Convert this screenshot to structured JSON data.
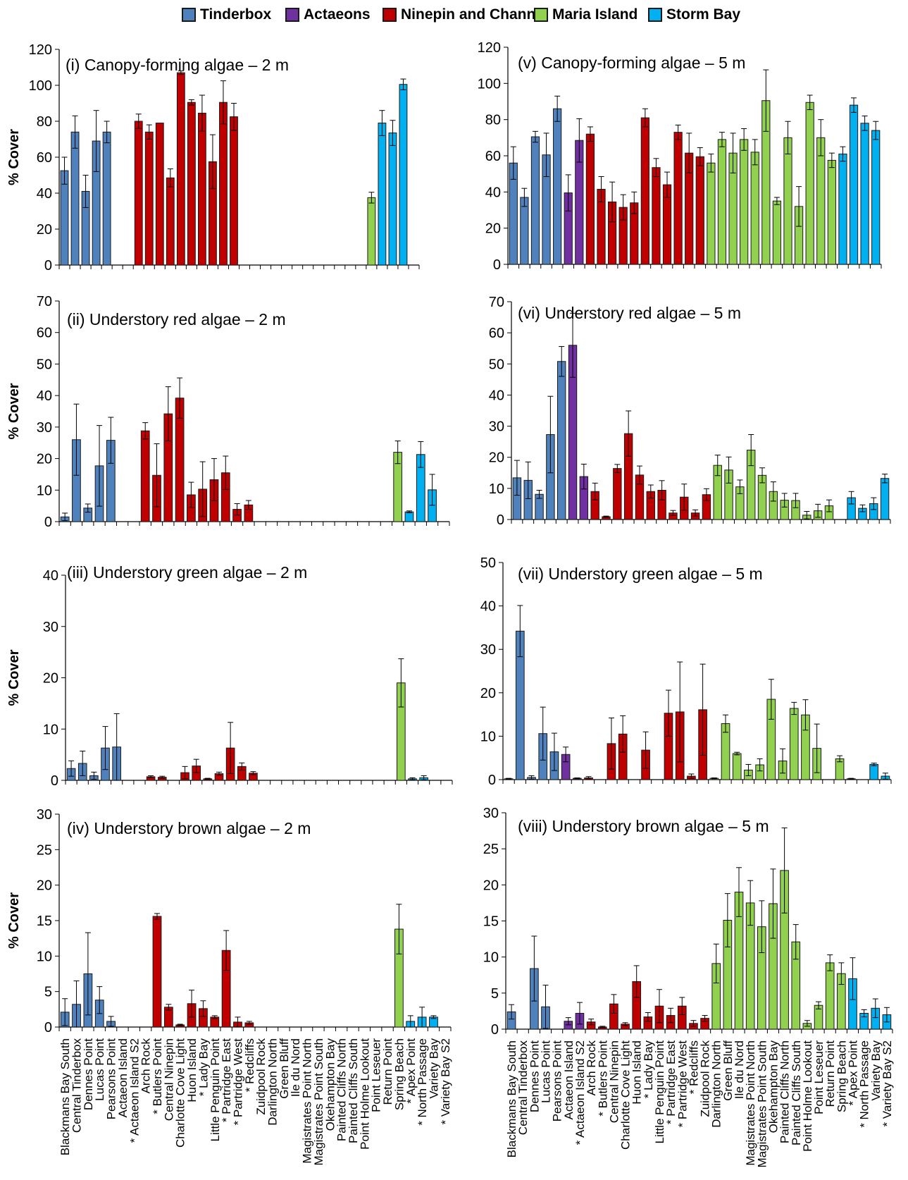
{
  "sites": [
    "Blackmans Bay South",
    "Central Tinderbox",
    "Dennes Point",
    "Lucas Point",
    "Pearsons Point",
    "Actaeon Island",
    "* Actaeon Island S2",
    "Arch Rock",
    "* Butlers Point",
    "Central Ninepin",
    "Charlotte Cove Light",
    "Huon Island",
    "* Lady Bay",
    "Little Penguin Point",
    "* Partridge East",
    "* Partridge West",
    "* Redcliffs",
    "Zuidpool Rock",
    "Darlington North",
    "Green Bluff",
    "Ile du Nord",
    "Magistrates Point North",
    "Magistrates Point South",
    "Okehampton Bay",
    "Painted Cliffs North",
    "Painted Cliffs South",
    "Point Holme Lookout",
    "Point Leseuer",
    "Return Point",
    "Spring Beach",
    "* Apex Point",
    "* North Passage",
    "Variety Bay",
    "* Variety Bay S2"
  ],
  "regions": [
    "Tinderbox",
    "Tinderbox",
    "Tinderbox",
    "Tinderbox",
    "Tinderbox",
    "Actaeons",
    "Actaeons",
    "Ninepin and Channel",
    "Ninepin and Channel",
    "Ninepin and Channel",
    "Ninepin and Channel",
    "Ninepin and Channel",
    "Ninepin and Channel",
    "Ninepin and Channel",
    "Ninepin and Channel",
    "Ninepin and Channel",
    "Ninepin and Channel",
    "Ninepin and Channel",
    "Maria Island",
    "Maria Island",
    "Maria Island",
    "Maria Island",
    "Maria Island",
    "Maria Island",
    "Maria Island",
    "Maria Island",
    "Maria Island",
    "Maria Island",
    "Maria Island",
    "Maria Island",
    "Storm Bay",
    "Storm Bay",
    "Storm Bay",
    "Storm Bay"
  ],
  "legend": [
    {
      "name": "Tinderbox",
      "color": "#4f81bd"
    },
    {
      "name": "Actaeons",
      "color": "#7030a0"
    },
    {
      "name": "Ninepin and Channel",
      "color": "#c00000"
    },
    {
      "name": "Maria Island",
      "color": "#92d050"
    },
    {
      "name": "Storm Bay",
      "color": "#00b0f0"
    }
  ],
  "chart_data": [
    {
      "type": "bar",
      "title": "(i) Canopy-forming  algae – 2 m",
      "ylabel": "% Cover",
      "ylim": [
        0,
        120
      ],
      "yticks": [
        0,
        20,
        40,
        60,
        80,
        100,
        120
      ],
      "values": [
        52.5,
        74,
        41,
        69,
        74,
        null,
        null,
        80,
        74,
        79,
        48.5,
        107,
        90.5,
        84.5,
        57.5,
        90.5,
        82.5,
        null,
        null,
        null,
        null,
        null,
        null,
        null,
        null,
        null,
        null,
        null,
        null,
        37.5,
        79,
        73.5,
        100.5,
        null
      ],
      "errors": [
        7.5,
        9,
        9,
        17,
        6,
        null,
        null,
        4,
        4,
        0,
        5,
        1,
        1.5,
        10,
        15,
        12,
        7.5,
        null,
        null,
        null,
        null,
        null,
        null,
        null,
        null,
        null,
        null,
        null,
        null,
        3,
        7,
        7,
        3,
        null
      ]
    },
    {
      "type": "bar",
      "title": "(ii) Understory red algae – 2 m",
      "ylabel": "% Cover",
      "ylim": [
        0,
        70
      ],
      "yticks": [
        0,
        10,
        20,
        30,
        40,
        50,
        60,
        70
      ],
      "values": [
        1.5,
        26,
        4.3,
        17.7,
        25.8,
        null,
        null,
        28.8,
        14.7,
        34.2,
        39.2,
        8.5,
        10.3,
        13.3,
        15.5,
        3.9,
        5.3,
        null,
        null,
        null,
        null,
        null,
        null,
        null,
        null,
        null,
        null,
        null,
        null,
        22,
        3.1,
        21.3,
        10.1,
        null
      ],
      "errors": [
        1.2,
        11.3,
        1.3,
        12.8,
        7.3,
        null,
        null,
        2.6,
        10,
        8.6,
        6.4,
        4,
        8.7,
        6.7,
        5.3,
        1.8,
        1.4,
        null,
        null,
        null,
        null,
        null,
        null,
        null,
        null,
        null,
        null,
        null,
        null,
        3.6,
        0.3,
        4.1,
        4.9,
        null
      ]
    },
    {
      "type": "bar",
      "title": "(iii) Understory green algae – 2 m",
      "ylabel": "% Cover",
      "ylim": [
        0,
        40
      ],
      "yticks": [
        0,
        10,
        20,
        30,
        40
      ],
      "values": [
        2.3,
        3.3,
        0.9,
        6.3,
        6.5,
        null,
        null,
        0.7,
        0.6,
        null,
        1.5,
        2.8,
        0.3,
        1.3,
        6.3,
        2.7,
        1.4,
        null,
        null,
        null,
        null,
        null,
        null,
        null,
        null,
        null,
        null,
        null,
        null,
        19,
        0.3,
        0.5,
        null,
        null
      ],
      "errors": [
        1.5,
        2.4,
        0.7,
        4.2,
        6.5,
        null,
        null,
        0.2,
        0.2,
        null,
        1.2,
        1.3,
        0.1,
        0.3,
        5,
        0.7,
        0.3,
        null,
        null,
        null,
        null,
        null,
        null,
        null,
        null,
        null,
        null,
        null,
        null,
        4.7,
        0.2,
        0.4,
        null,
        null
      ]
    },
    {
      "type": "bar",
      "title": "(iv) Understory brown algae – 2 m",
      "ylabel": "% Cover",
      "ylim": [
        0,
        30
      ],
      "yticks": [
        0,
        5,
        10,
        15,
        20,
        25,
        30
      ],
      "values": [
        2.1,
        3.2,
        7.5,
        3.8,
        0.8,
        null,
        null,
        null,
        15.6,
        2.8,
        0.3,
        3.3,
        2.6,
        1.4,
        10.8,
        0.7,
        0.6,
        null,
        null,
        null,
        null,
        null,
        null,
        null,
        null,
        null,
        null,
        null,
        null,
        13.8,
        0.8,
        1.4,
        1.4,
        null
      ],
      "errors": [
        1.9,
        3.3,
        5.8,
        1.9,
        0.7,
        null,
        null,
        null,
        0.4,
        0.4,
        0.1,
        1.9,
        1.1,
        0.2,
        2.8,
        0.7,
        0.2,
        null,
        null,
        null,
        null,
        null,
        null,
        null,
        null,
        null,
        null,
        null,
        null,
        3.5,
        0.8,
        1.4,
        0.2,
        null
      ]
    },
    {
      "type": "bar",
      "title": "(v) Canopy-forming  algae – 5 m",
      "ylabel": "",
      "ylim": [
        0,
        120
      ],
      "yticks": [
        0,
        20,
        40,
        60,
        80,
        100,
        120
      ],
      "values": [
        56,
        37,
        70.5,
        60.5,
        86,
        39.5,
        68.5,
        72,
        41.5,
        34.5,
        31.5,
        34,
        81,
        53.5,
        44,
        73,
        61.5,
        59.5,
        56,
        69,
        61.5,
        69,
        62,
        90.5,
        35,
        70,
        32,
        89.5,
        70,
        57.5,
        61,
        88,
        78,
        74
      ],
      "errors": [
        9,
        5,
        3,
        12,
        7,
        10,
        12,
        4,
        7,
        11,
        7,
        6,
        5,
        5,
        7,
        4,
        11,
        5,
        5,
        4,
        11,
        6,
        7,
        17,
        2,
        9,
        11,
        4,
        10,
        4,
        4,
        4,
        4,
        5
      ]
    },
    {
      "type": "bar",
      "title": "(vi) Understory red algae – 5 m",
      "ylabel": "",
      "ylim": [
        0,
        70
      ],
      "yticks": [
        0,
        10,
        20,
        30,
        40,
        50,
        60,
        70
      ],
      "values": [
        13.4,
        12.6,
        8.1,
        27.3,
        50.8,
        56,
        13.8,
        9,
        0.9,
        16.4,
        27.6,
        14.3,
        9,
        9.4,
        2.1,
        7.2,
        2.1,
        8,
        17.4,
        15.9,
        10.5,
        22.3,
        14.2,
        9,
        6.2,
        6.1,
        1.4,
        2.8,
        4.4,
        null,
        7,
        3.6,
        5.1,
        13.2
      ],
      "errors": [
        5.6,
        5.9,
        1.3,
        12.3,
        4.8,
        10.3,
        4,
        2.7,
        0.2,
        1.3,
        7.3,
        2.9,
        2.1,
        3.1,
        0.8,
        4.2,
        1,
        1.9,
        3.3,
        4.2,
        2.2,
        5,
        2.4,
        3.1,
        2.2,
        2.3,
        1.2,
        2.1,
        1.9,
        null,
        2,
        1.1,
        1.9,
        1.4
      ]
    },
    {
      "type": "bar",
      "title": "(vii) Understory green algae – 5 m",
      "ylabel": "",
      "ylim": [
        0,
        50
      ],
      "yticks": [
        0,
        10,
        20,
        30,
        40,
        50
      ],
      "values": [
        0.2,
        34.2,
        0.5,
        10.6,
        6.4,
        5.8,
        0.3,
        0.4,
        null,
        8.3,
        10.5,
        null,
        6.8,
        null,
        15.3,
        15.6,
        0.8,
        16.1,
        0.3,
        12.9,
        6,
        2.2,
        3.4,
        18.5,
        4.3,
        16.4,
        14.9,
        7.2,
        null,
        4.8,
        0.2,
        null,
        3.5,
        0.8
      ],
      "errors": [
        0.1,
        5.9,
        0.4,
        6.1,
        4.3,
        1.7,
        0.1,
        0.3,
        null,
        5.9,
        4.2,
        null,
        4.2,
        null,
        5.3,
        11.5,
        0.5,
        10.5,
        0.1,
        2,
        0.3,
        1.3,
        1.4,
        4.6,
        2.8,
        1.4,
        3.5,
        5.6,
        null,
        0.7,
        0.1,
        null,
        0.3,
        0.7
      ]
    },
    {
      "type": "bar",
      "title": "(viii) Understory brown algae – 5 m",
      "ylabel": "",
      "ylim": [
        0,
        30
      ],
      "yticks": [
        0,
        5,
        10,
        15,
        20,
        25,
        30
      ],
      "values": [
        2.4,
        null,
        8.4,
        3.1,
        null,
        1.1,
        2.2,
        1,
        0.3,
        3.5,
        0.7,
        6.6,
        1.7,
        3.2,
        1.9,
        3.2,
        0.8,
        1.5,
        9.1,
        15.1,
        19,
        17.5,
        14.2,
        17.4,
        22,
        12.1,
        0.8,
        3.3,
        9.2,
        7.7,
        7,
        2.2,
        2.9,
        2
      ],
      "errors": [
        1,
        null,
        4.5,
        3,
        null,
        0.5,
        1.5,
        0.4,
        0.1,
        1.3,
        0.2,
        2.2,
        0.6,
        2.3,
        1,
        1.2,
        0.4,
        0.4,
        2.7,
        3.7,
        3.4,
        3.1,
        3.6,
        4.8,
        5.9,
        2.4,
        0.4,
        0.5,
        1.1,
        1.5,
        2.9,
        0.5,
        1.3,
        1
      ]
    }
  ]
}
